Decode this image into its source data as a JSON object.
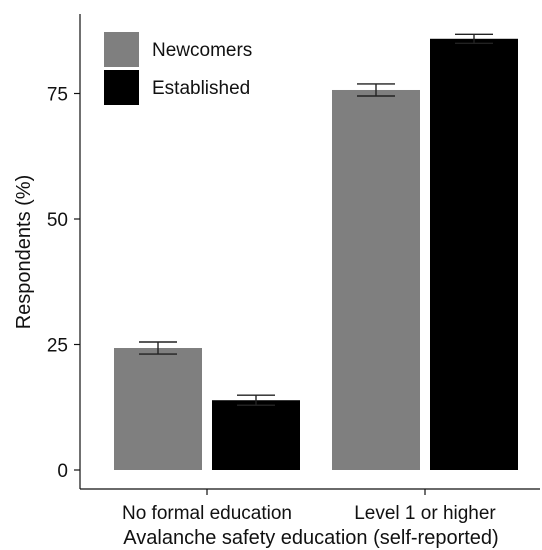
{
  "chart_data": {
    "type": "bar",
    "title": "",
    "xlabel": "Avalanche safety education (self-reported)",
    "ylabel": "Respondents (%)",
    "categories": [
      "No formal education",
      "Level 1 or higher"
    ],
    "series": [
      {
        "name": "Newcomers",
        "color": "#7f7f7f",
        "values": [
          24.3,
          75.7
        ],
        "error": [
          1.2,
          1.2
        ]
      },
      {
        "name": "Established",
        "color": "#000000",
        "values": [
          13.9,
          85.9
        ],
        "error": [
          1.0,
          0.9
        ]
      }
    ],
    "yticks": [
      "0",
      "25",
      "50",
      "75"
    ],
    "ylim": [
      -2.5,
      91
    ],
    "grid": false,
    "legend": "top-left"
  }
}
